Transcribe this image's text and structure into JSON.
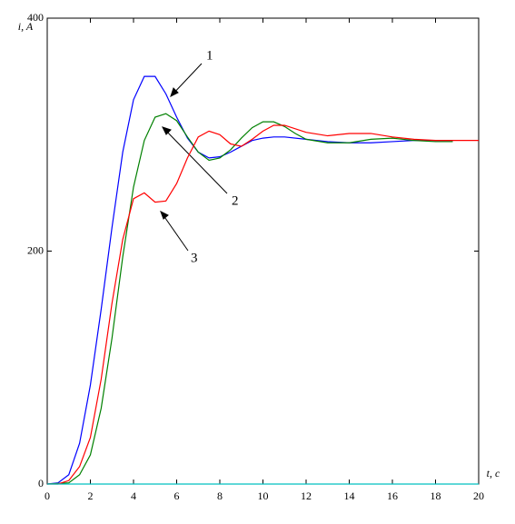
{
  "chart_data": {
    "type": "line",
    "xlabel": "t, c",
    "ylabel": "i, A",
    "xlim": [
      0,
      20
    ],
    "xticks": [
      0,
      2,
      4,
      6,
      8,
      10,
      12,
      14,
      16,
      18,
      20
    ],
    "ylim": [
      0,
      400
    ],
    "yticks": [
      0,
      200,
      400
    ],
    "series": [
      {
        "name": "1",
        "color": "#0000ff",
        "x": [
          0,
          0.5,
          1,
          1.5,
          2,
          2.5,
          3,
          3.5,
          4,
          4.5,
          5,
          5.5,
          6,
          6.5,
          7,
          7.5,
          8,
          8.5,
          9,
          9.5,
          10,
          10.5,
          11,
          12,
          13,
          14,
          15,
          16,
          17,
          18,
          18.8
        ],
        "values": [
          0,
          1,
          8,
          35,
          85,
          150,
          220,
          285,
          330,
          350,
          350,
          335,
          315,
          297,
          285,
          280,
          281,
          285,
          290,
          295,
          297,
          298,
          298,
          296,
          294,
          293,
          293,
          294,
          295,
          295,
          295
        ]
      },
      {
        "name": "2",
        "color": "#008000",
        "x": [
          0,
          1,
          1.5,
          2,
          2.5,
          3,
          3.5,
          4,
          4.5,
          5,
          5.5,
          6,
          6.5,
          7,
          7.5,
          8,
          8.5,
          9,
          9.5,
          10,
          10.5,
          11,
          11.5,
          12,
          13,
          14,
          15,
          16,
          17,
          18,
          18.8
        ],
        "values": [
          0,
          1,
          8,
          25,
          65,
          125,
          195,
          255,
          295,
          315,
          318,
          312,
          298,
          285,
          278,
          280,
          287,
          297,
          306,
          311,
          311,
          307,
          301,
          296,
          293,
          293,
          296,
          297,
          295,
          294,
          294
        ]
      },
      {
        "name": "3",
        "color": "#ff0000",
        "x": [
          0,
          0.5,
          1,
          1.5,
          2,
          2.5,
          3,
          3.5,
          4,
          4.5,
          5,
          5.5,
          6,
          6.5,
          7,
          7.5,
          8,
          8.5,
          9,
          9.5,
          10,
          10.5,
          11,
          12,
          13,
          14,
          15,
          16,
          17,
          18,
          19,
          20
        ],
        "values": [
          0,
          0,
          3,
          15,
          40,
          90,
          155,
          210,
          245,
          250,
          242,
          243,
          258,
          280,
          298,
          303,
          300,
          292,
          290,
          296,
          303,
          308,
          308,
          302,
          299,
          301,
          301,
          298,
          296,
          295,
          295,
          295
        ]
      },
      {
        "color": "#00c0c0",
        "x": [
          0,
          20
        ],
        "values": [
          0,
          0
        ]
      }
    ]
  }
}
